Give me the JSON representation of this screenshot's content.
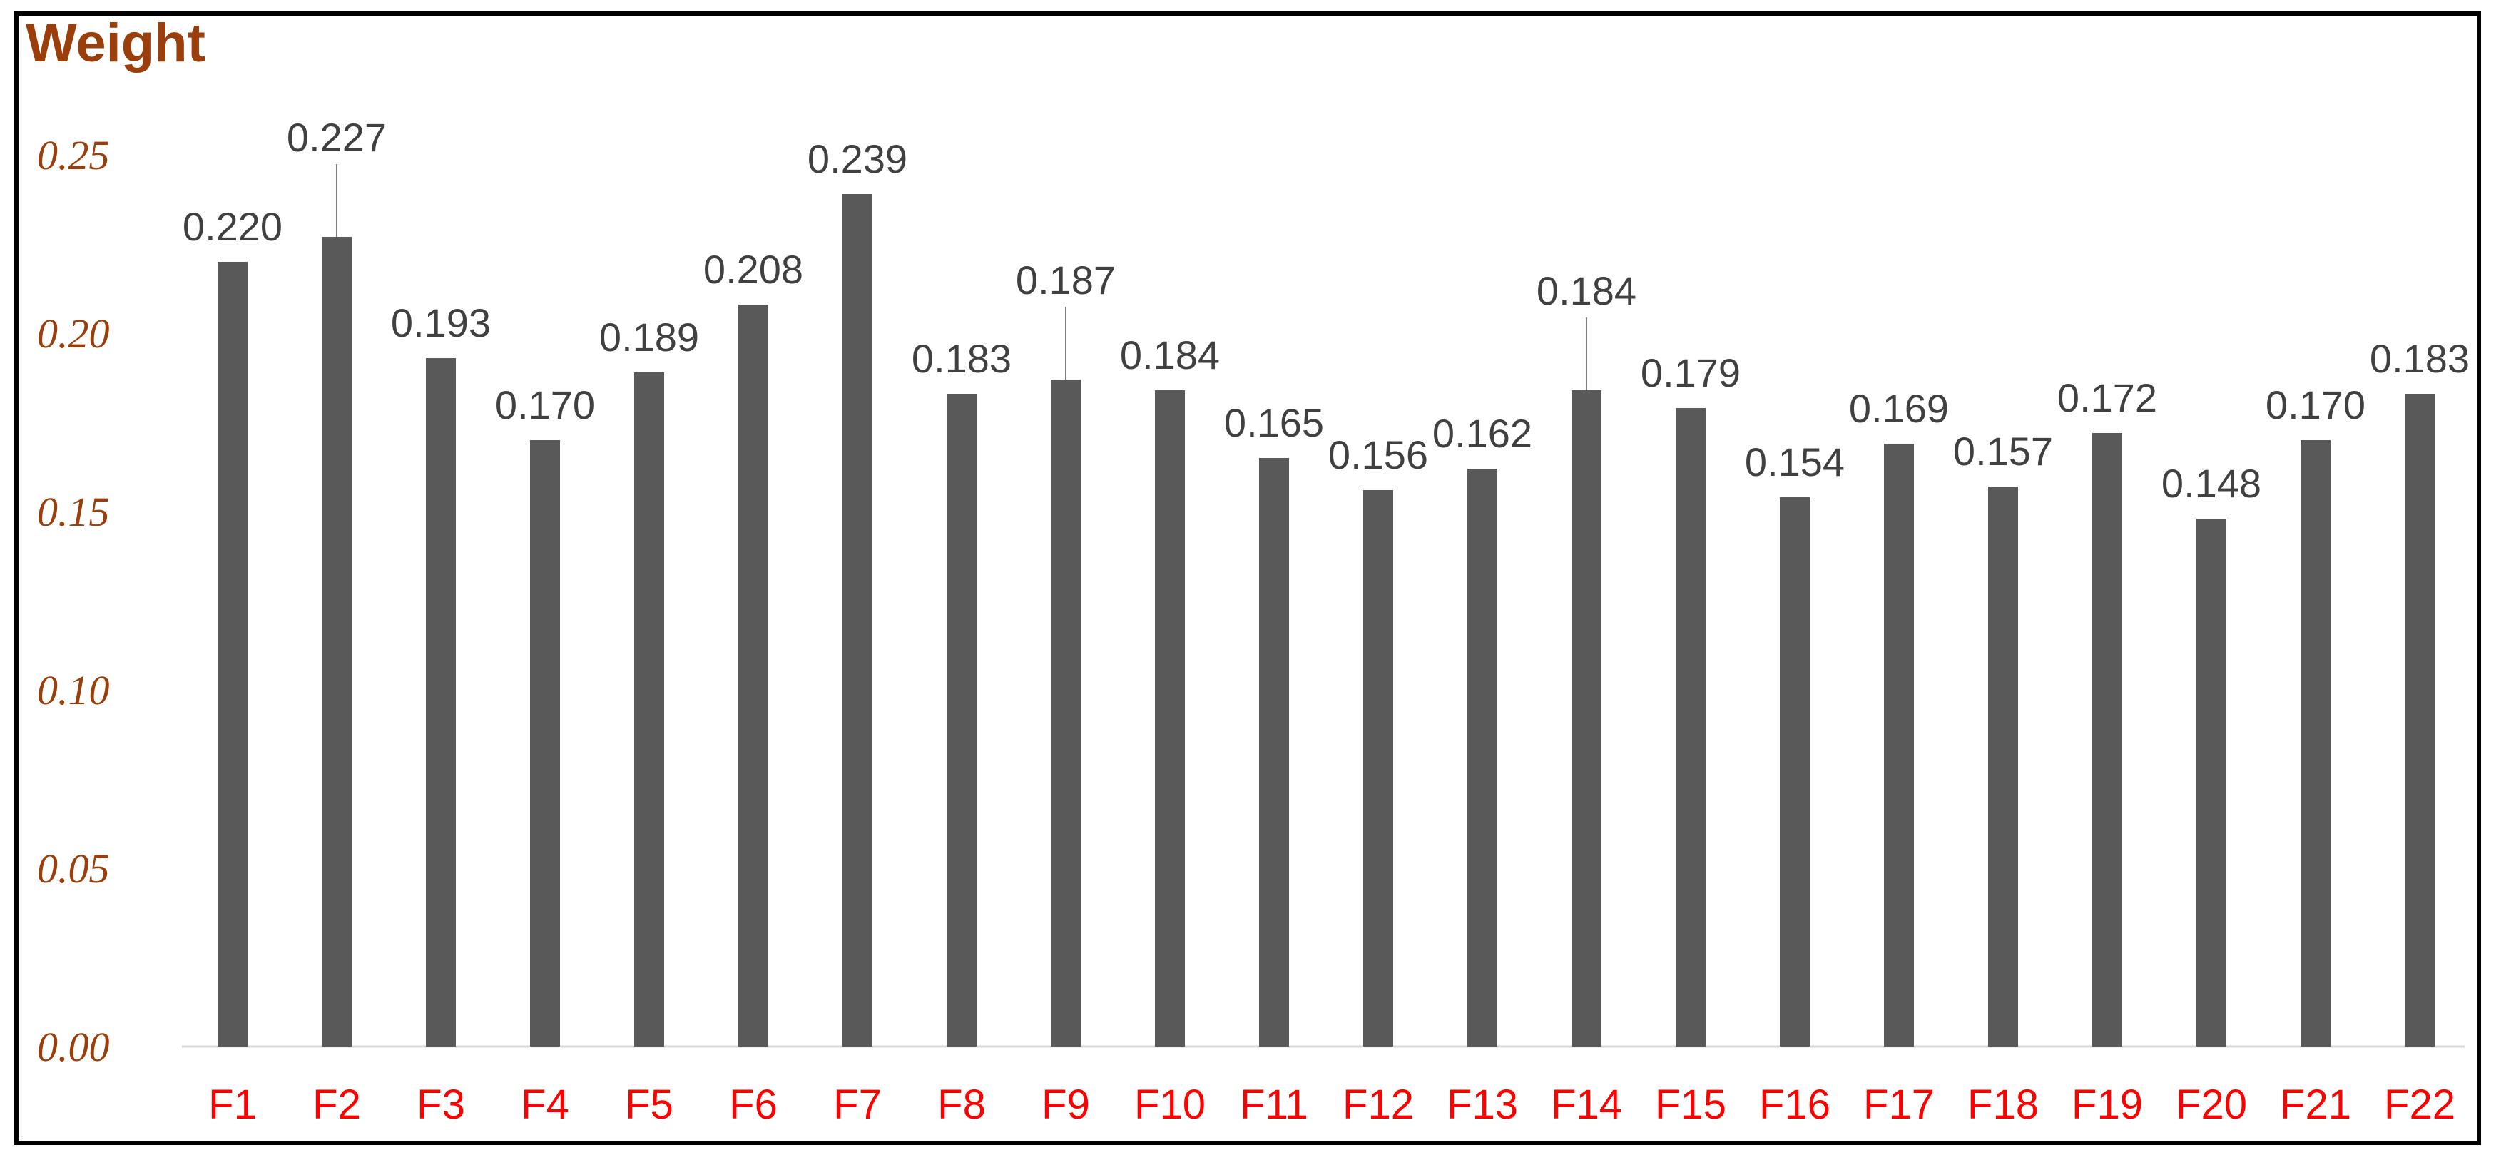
{
  "chart_data": {
    "type": "bar",
    "title": "Weight",
    "xlabel": "",
    "ylabel": "",
    "categories": [
      "F1",
      "F2",
      "F3",
      "F4",
      "F5",
      "F6",
      "F7",
      "F8",
      "F9",
      "F10",
      "F11",
      "F12",
      "F13",
      "F14",
      "F15",
      "F16",
      "F17",
      "F18",
      "F19",
      "F20",
      "F21",
      "F22"
    ],
    "values": [
      0.22,
      0.227,
      0.193,
      0.17,
      0.189,
      0.208,
      0.239,
      0.183,
      0.187,
      0.184,
      0.165,
      0.156,
      0.162,
      0.184,
      0.179,
      0.154,
      0.169,
      0.157,
      0.172,
      0.148,
      0.17,
      0.183
    ],
    "data_labels": [
      "0.220",
      "0.227",
      "0.193",
      "0.170",
      "0.189",
      "0.208",
      "0.239",
      "0.183",
      "0.187",
      "0.184",
      "0.165",
      "0.156",
      "0.162",
      "0.184",
      "0.179",
      "0.154",
      "0.169",
      "0.157",
      "0.172",
      "0.148",
      "0.170",
      "0.183"
    ],
    "y_ticks": [
      "0.00",
      "0.05",
      "0.10",
      "0.15",
      "0.20",
      "0.25"
    ],
    "ylim": [
      0,
      0.25
    ],
    "grid": false,
    "legend": "none",
    "colors": {
      "bar": "#595959",
      "title": "#9a3e0c",
      "y_tick": "#9a3e0c",
      "x_tick": "#ff0000",
      "data_label": "#404040"
    }
  }
}
